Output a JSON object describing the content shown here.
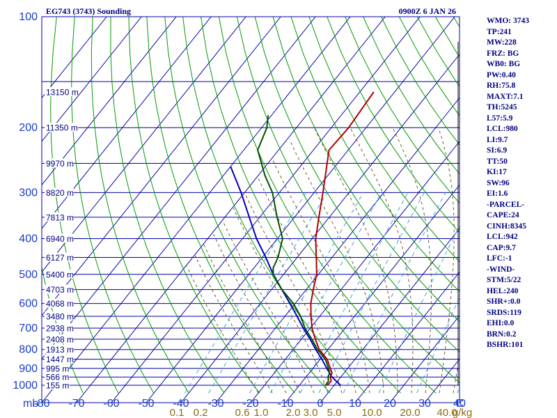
{
  "chart_data": {
    "type": "skew-t",
    "title_left": "EG743 (3743) Sounding",
    "title_right": "0900Z  6 JAN 26",
    "pressure_ticks": [
      "100",
      "200",
      "300",
      "400",
      "500",
      "600",
      "700",
      "800",
      "900",
      "1000"
    ],
    "pressure_levels": [
      100,
      200,
      300,
      400,
      500,
      600,
      700,
      800,
      900,
      1000
    ],
    "temp_ticks": [
      "-80",
      "-70",
      "-60",
      "-50",
      "-40",
      "-30",
      "-20",
      "-10",
      "0",
      "10",
      "20",
      "30",
      "40"
    ],
    "temp_values": [
      -80,
      -70,
      -60,
      -50,
      -40,
      -30,
      -20,
      -10,
      0,
      10,
      20,
      30,
      40
    ],
    "axis_unit_left": "mb",
    "axis_unit_right": "C",
    "mixing_ratio_labels": [
      "0.1",
      "0.2",
      "0.6",
      "1.0",
      "2.0",
      "3.0",
      "5.0",
      "10.0",
      "20.0",
      "40.0",
      "g/kg"
    ],
    "mixing_ratio_values": [
      0.1,
      0.2,
      0.6,
      1.0,
      2.0,
      3.0,
      5.0,
      10.0,
      20.0,
      40.0
    ],
    "heights": [
      {
        "label": "13150 m",
        "p": 160
      },
      {
        "label": "11350 m",
        "p": 200
      },
      {
        "label": "9970 m",
        "p": 250
      },
      {
        "label": "8820 m",
        "p": 300
      },
      {
        "label": "7813 m",
        "p": 350
      },
      {
        "label": "6940 m",
        "p": 400
      },
      {
        "label": "6127 m",
        "p": 450
      },
      {
        "label": "5400 m",
        "p": 500
      },
      {
        "label": "4703 m",
        "p": 550
      },
      {
        "label": "4068 m",
        "p": 600
      },
      {
        "label": "3480 m",
        "p": 650
      },
      {
        "label": "2938 m",
        "p": 700
      },
      {
        "label": "2408 m",
        "p": 750
      },
      {
        "label": "1913 m",
        "p": 800
      },
      {
        "label": "1447 m",
        "p": 850
      },
      {
        "label": "995 m",
        "p": 900
      },
      {
        "label": "566 m",
        "p": 950
      },
      {
        "label": "155 m",
        "p": 1000
      }
    ],
    "temperature": [
      [
        1000,
        -2.0
      ],
      [
        975,
        -1.8
      ],
      [
        950,
        -3.0
      ],
      [
        925,
        -3.5
      ],
      [
        900,
        -5.0
      ],
      [
        850,
        -8.0
      ],
      [
        800,
        -12.5
      ],
      [
        750,
        -16.0
      ],
      [
        700,
        -19.5
      ],
      [
        650,
        -22.5
      ],
      [
        600,
        -25.5
      ],
      [
        550,
        -28.0
      ],
      [
        500,
        -30.5
      ],
      [
        450,
        -34.5
      ],
      [
        400,
        -39.0
      ],
      [
        350,
        -43.0
      ],
      [
        300,
        -47.5
      ],
      [
        250,
        -53.0
      ],
      [
        230,
        -55.5
      ],
      [
        200,
        -55.0
      ],
      [
        160,
        -56.0
      ]
    ],
    "dewpoint": [
      [
        1000,
        -2.5
      ],
      [
        975,
        -2.6
      ],
      [
        950,
        -3.6
      ],
      [
        925,
        -4.2
      ],
      [
        900,
        -5.5
      ],
      [
        850,
        -8.5
      ],
      [
        800,
        -13.0
      ],
      [
        750,
        -17.0
      ],
      [
        700,
        -21.5
      ],
      [
        650,
        -25.5
      ],
      [
        600,
        -30.5
      ],
      [
        550,
        -37.0
      ],
      [
        500,
        -43.0
      ],
      [
        480,
        -44.5
      ],
      [
        450,
        -45.5
      ],
      [
        400,
        -48.5
      ],
      [
        350,
        -55.0
      ],
      [
        300,
        -62.0
      ],
      [
        270,
        -68.0
      ],
      [
        230,
        -76.0
      ],
      [
        200,
        -78.5
      ],
      [
        185,
        -81.0
      ]
    ],
    "parcel": [
      [
        1000,
        1.8
      ],
      [
        950,
        -2.5
      ],
      [
        900,
        -6.0
      ],
      [
        850,
        -9.5
      ],
      [
        800,
        -13.5
      ],
      [
        750,
        -17.5
      ],
      [
        700,
        -22.0
      ],
      [
        650,
        -26.5
      ],
      [
        600,
        -31.5
      ],
      [
        550,
        -37.0
      ],
      [
        500,
        -43.0
      ],
      [
        450,
        -49.0
      ],
      [
        400,
        -56.0
      ],
      [
        350,
        -63.0
      ],
      [
        300,
        -71.0
      ],
      [
        255,
        -80.0
      ]
    ],
    "colors": {
      "grid_blue": "#0000a8",
      "dry_adiabat_green": "#009900",
      "moist_adiabat": "#5a4a1a",
      "mixing_ratio": "#40a0e0",
      "temperature": "#b00000",
      "dewpoint": "#005000",
      "parcel": "#0000c0",
      "axis_label_blue": "#1a3cc8",
      "mixing_label": "#8a6a10",
      "text_navy": "#000080"
    }
  },
  "indices": [
    "WMO: 3743",
    "TP:241",
    "MW:228",
    "FRZ: BG",
    "WB0: BG",
    "PW:0.40",
    "RH:75.8",
    "MAXT:7.1",
    "TH:5245",
    "L57:5.9",
    "LCL:980",
    "LI:9.7",
    "SI:6.9",
    "TT:50",
    "KI:17",
    "SW:96",
    "EI:1.6",
    "-PARCEL-",
    "CAPE:24",
    "CINH:8345",
    "LCL:942",
    "CAP:9.7",
    "LFC:-1",
    "-WIND-",
    "STM:5/22",
    "HEL:240",
    "SHR+:0.0",
    "SRDS:119",
    "EHI:0.0",
    "BRN:0.2",
    "BSHR:101"
  ]
}
